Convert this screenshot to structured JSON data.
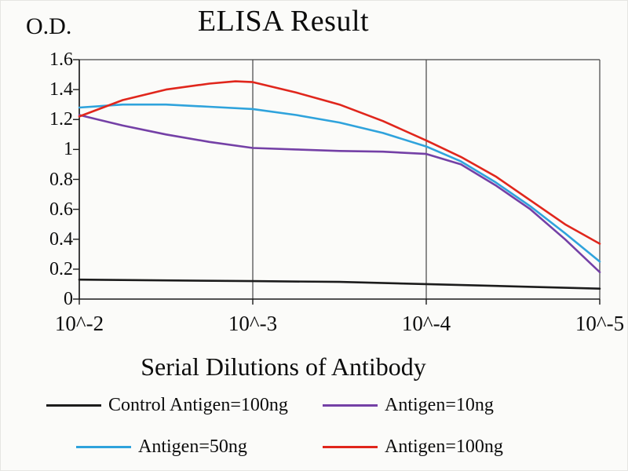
{
  "chart_data": {
    "type": "line",
    "title": "ELISA Result",
    "ylabel": "O.D.",
    "xlabel": "Serial Dilutions of Antibody",
    "x_tick_labels": [
      "10^-2",
      "10^-3",
      "10^-4",
      "10^-5"
    ],
    "y_tick_labels": [
      "0",
      "0.2",
      "0.4",
      "0.6",
      "0.8",
      "1",
      "1.2",
      "1.4",
      "1.6"
    ],
    "ylim": [
      0,
      1.6
    ],
    "x_axis": "log dilution, evenly spaced ticks from 10^-2 to 10^-5",
    "grid": "vertical gridlines at each x tick; framed plot area",
    "legend_position": "bottom",
    "axis_color": "#1a1a1a",
    "grid_color": "#444444",
    "series": [
      {
        "name": "Control Antigen=100ng",
        "color": "#1c1c1c",
        "points": [
          [
            0,
            0.13
          ],
          [
            0.5,
            0.125
          ],
          [
            1,
            0.12
          ],
          [
            1.5,
            0.115
          ],
          [
            2,
            0.1
          ],
          [
            2.5,
            0.085
          ],
          [
            3,
            0.07
          ]
        ]
      },
      {
        "name": "Antigen=10ng",
        "color": "#7440a6",
        "points": [
          [
            0,
            1.23
          ],
          [
            0.25,
            1.16
          ],
          [
            0.5,
            1.1
          ],
          [
            0.75,
            1.05
          ],
          [
            1,
            1.01
          ],
          [
            1.25,
            1.0
          ],
          [
            1.5,
            0.99
          ],
          [
            1.75,
            0.985
          ],
          [
            2,
            0.97
          ],
          [
            2.2,
            0.9
          ],
          [
            2.4,
            0.76
          ],
          [
            2.6,
            0.6
          ],
          [
            2.8,
            0.4
          ],
          [
            3,
            0.18
          ]
        ]
      },
      {
        "name": "Antigen=50ng",
        "color": "#2fa3dc",
        "points": [
          [
            0,
            1.28
          ],
          [
            0.25,
            1.3
          ],
          [
            0.5,
            1.3
          ],
          [
            0.75,
            1.285
          ],
          [
            1,
            1.27
          ],
          [
            1.25,
            1.23
          ],
          [
            1.5,
            1.18
          ],
          [
            1.75,
            1.11
          ],
          [
            2,
            1.02
          ],
          [
            2.2,
            0.92
          ],
          [
            2.4,
            0.78
          ],
          [
            2.6,
            0.62
          ],
          [
            2.8,
            0.44
          ],
          [
            3,
            0.25
          ]
        ]
      },
      {
        "name": "Antigen=100ng",
        "color": "#e0261c",
        "points": [
          [
            0,
            1.22
          ],
          [
            0.25,
            1.33
          ],
          [
            0.5,
            1.4
          ],
          [
            0.75,
            1.44
          ],
          [
            0.9,
            1.455
          ],
          [
            1,
            1.45
          ],
          [
            1.25,
            1.38
          ],
          [
            1.5,
            1.3
          ],
          [
            1.75,
            1.19
          ],
          [
            2,
            1.06
          ],
          [
            2.2,
            0.95
          ],
          [
            2.4,
            0.82
          ],
          [
            2.6,
            0.66
          ],
          [
            2.8,
            0.5
          ],
          [
            3,
            0.37
          ]
        ]
      }
    ]
  }
}
